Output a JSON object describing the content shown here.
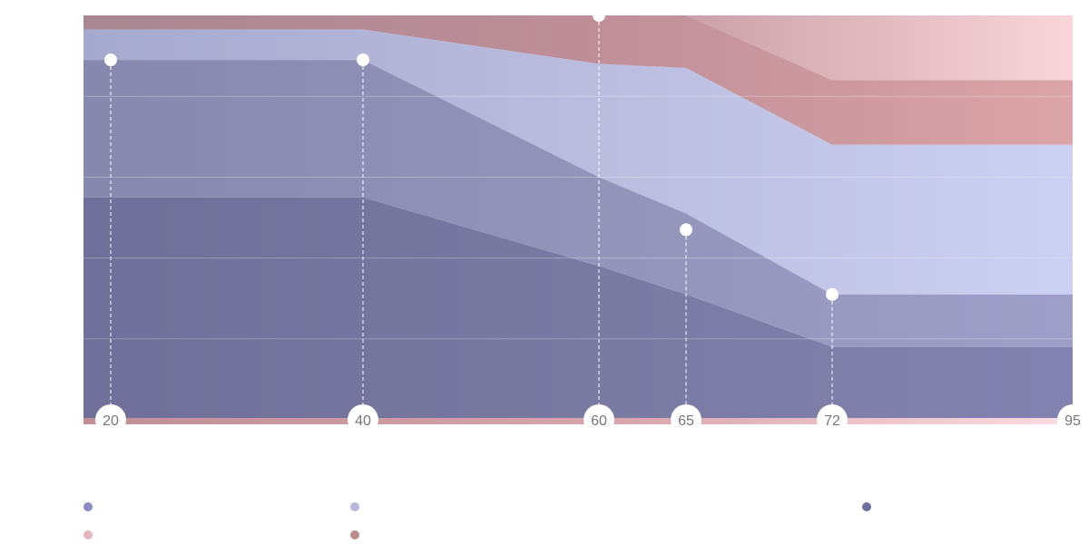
{
  "chart_data": {
    "type": "area",
    "stacked": true,
    "x": [
      20,
      40,
      60,
      65,
      72,
      95
    ],
    "xlabel": "",
    "ylabel": "",
    "ylim": [
      0,
      100
    ],
    "grid": true,
    "legend_position": "bottom",
    "series": [
      {
        "values": [
          55,
          55,
          38,
          31,
          18,
          18
        ],
        "color": "#6f6f9a"
      },
      {
        "values": [
          34,
          34,
          22,
          20,
          13,
          13
        ],
        "color": "#8a8bb4"
      },
      {
        "values": [
          7.5,
          7.5,
          28,
          36,
          37,
          37
        ],
        "color": "#c2c4e6"
      },
      {
        "values": [
          3.5,
          3.5,
          12,
          13,
          16,
          16
        ],
        "color": "#cc949a"
      },
      {
        "values": [
          0,
          0,
          0,
          0,
          16,
          16
        ],
        "color": "#f8d6da"
      }
    ],
    "markers": [
      {
        "x": 20,
        "y": 89
      },
      {
        "x": 40,
        "y": 89
      },
      {
        "x": 60,
        "y": 100
      },
      {
        "x": 65,
        "y": 47
      },
      {
        "x": 72,
        "y": 31
      }
    ]
  },
  "legend": [
    {
      "label": "",
      "color": "#8a8bc0"
    },
    {
      "label": "",
      "color": "#b7b8dc"
    },
    {
      "label": "",
      "color": "#6f709f"
    },
    {
      "label": "",
      "color": "#e6b6bd"
    },
    {
      "label": "",
      "color": "#b98a8e"
    }
  ]
}
